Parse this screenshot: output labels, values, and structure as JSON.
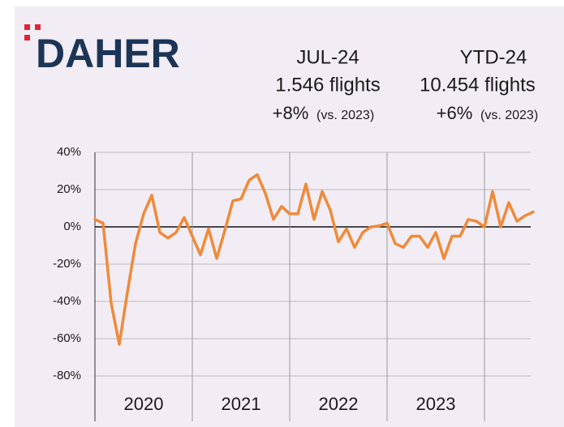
{
  "header": {
    "logo": "DAHER",
    "panels": [
      {
        "period": "JUL-24",
        "flights": "1.546 flights",
        "change": "+8%",
        "note": "(vs. 2023)"
      },
      {
        "period": "YTD-24",
        "flights": "10.454 flights",
        "change": "+6%",
        "note": "(vs. 2023)"
      }
    ]
  },
  "chart_data": {
    "type": "line",
    "series": [
      {
        "color": "#ef8a3a",
        "values": [
          4,
          2,
          -41,
          -63,
          -35,
          -9,
          7,
          17,
          -3,
          -6,
          -3,
          5,
          -5,
          -15,
          -1,
          -17,
          -2,
          14,
          15,
          25,
          28,
          18,
          4,
          11,
          7,
          7,
          23,
          4,
          19,
          9,
          -8,
          -1,
          -11,
          -3,
          0,
          0.5,
          2,
          -9,
          -11,
          -5,
          -5,
          -11,
          -3,
          -17,
          -5,
          -5,
          4,
          3,
          0,
          19,
          0,
          13,
          3,
          6,
          8
        ]
      }
    ],
    "xlim": [
      2020,
      2024.5
    ],
    "xticks": [
      2020,
      2021,
      2022,
      2023
    ],
    "xgrid": [
      2020,
      2021,
      2022,
      2023,
      2024
    ],
    "ylim": [
      -80,
      40
    ],
    "yticks": [
      {
        "value": 40,
        "label": "40%"
      },
      {
        "value": 20,
        "label": "20%"
      },
      {
        "value": 0,
        "label": "0%"
      },
      {
        "value": -20,
        "label": "-20%"
      },
      {
        "value": -40,
        "label": "-40%"
      },
      {
        "value": -60,
        "label": "-60%"
      },
      {
        "value": -80,
        "label": "-80%"
      }
    ],
    "grid": true
  }
}
